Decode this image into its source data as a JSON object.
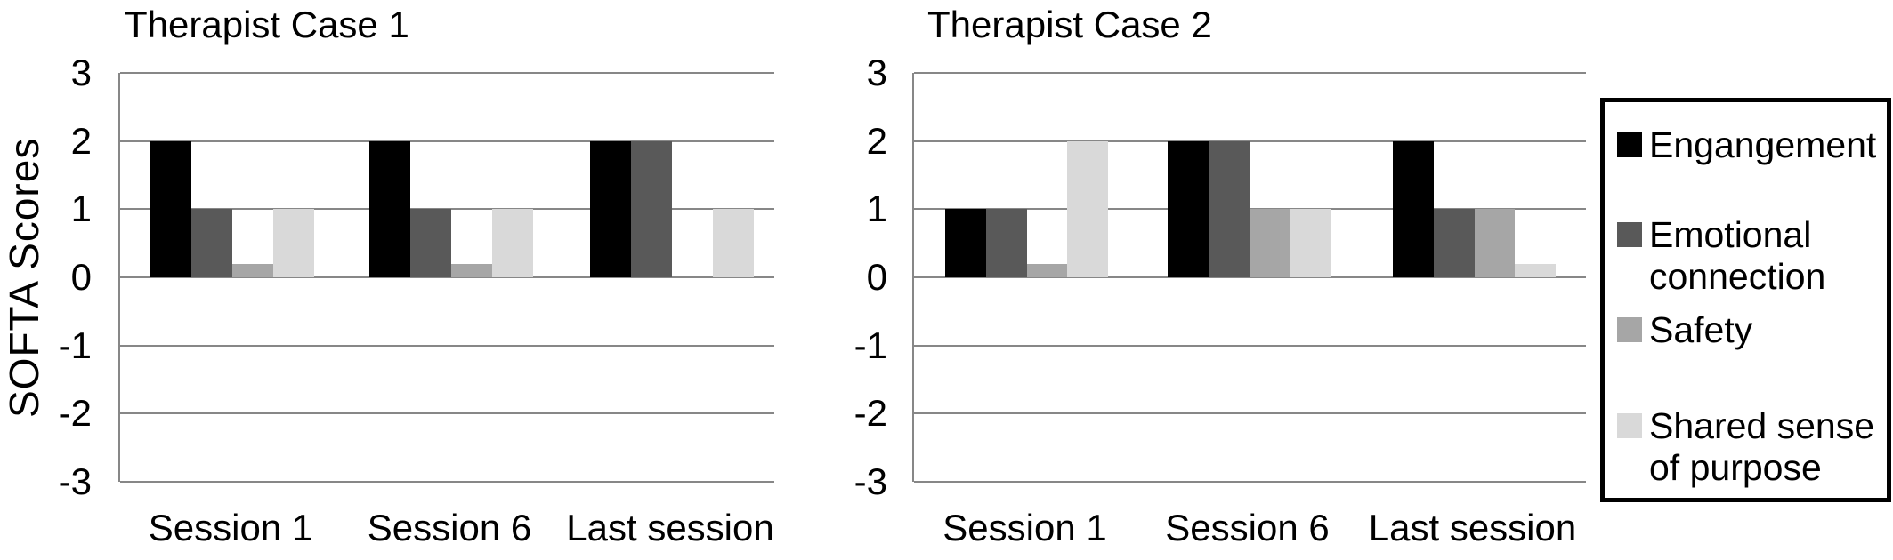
{
  "figure": {
    "background": "#ffffff",
    "gridline_color": "#878787",
    "text_color": "#000000"
  },
  "y_axis_label": "SOFTA Scores",
  "legend": {
    "border_color": "#000000",
    "items": [
      {
        "label": "Engangement",
        "color": "#000000"
      },
      {
        "label": "Emotional connection",
        "color": "#595959"
      },
      {
        "label": "Safety",
        "color": "#a6a6a6"
      },
      {
        "label": "Shared sense of purpose",
        "color": "#d9d9d9"
      }
    ]
  },
  "chart_data": [
    {
      "type": "bar",
      "title": "Therapist Case 1",
      "ylabel": "SOFTA Scores",
      "xlabel": "",
      "ylim": [
        -3,
        3
      ],
      "yticks": [
        3,
        2,
        1,
        0,
        -1,
        -2,
        -3
      ],
      "grid": true,
      "legend_position": "right",
      "categories": [
        "Session 1",
        "Session 6",
        "Last session"
      ],
      "series": [
        {
          "name": "Engangement",
          "color": "#000000",
          "values": [
            2,
            2,
            2
          ]
        },
        {
          "name": "Emotional connection",
          "color": "#595959",
          "values": [
            1,
            1,
            2
          ]
        },
        {
          "name": "Safety",
          "color": "#a6a6a6",
          "values": [
            0.2,
            0.2,
            0
          ]
        },
        {
          "name": "Shared sense of purpose",
          "color": "#d9d9d9",
          "values": [
            1,
            1,
            1
          ]
        }
      ]
    },
    {
      "type": "bar",
      "title": "Therapist Case 2",
      "ylabel": "",
      "xlabel": "",
      "ylim": [
        -3,
        3
      ],
      "yticks": [
        3,
        2,
        1,
        0,
        -1,
        -2,
        -3
      ],
      "grid": true,
      "legend_position": "right",
      "categories": [
        "Session 1",
        "Session 6",
        "Last session"
      ],
      "series": [
        {
          "name": "Engangement",
          "color": "#000000",
          "values": [
            1,
            2,
            2
          ]
        },
        {
          "name": "Emotional connection",
          "color": "#595959",
          "values": [
            1,
            2,
            1
          ]
        },
        {
          "name": "Safety",
          "color": "#a6a6a6",
          "values": [
            0.2,
            1,
            1
          ]
        },
        {
          "name": "Shared sense of purpose",
          "color": "#d9d9d9",
          "values": [
            2,
            1,
            0.2
          ]
        }
      ]
    }
  ]
}
